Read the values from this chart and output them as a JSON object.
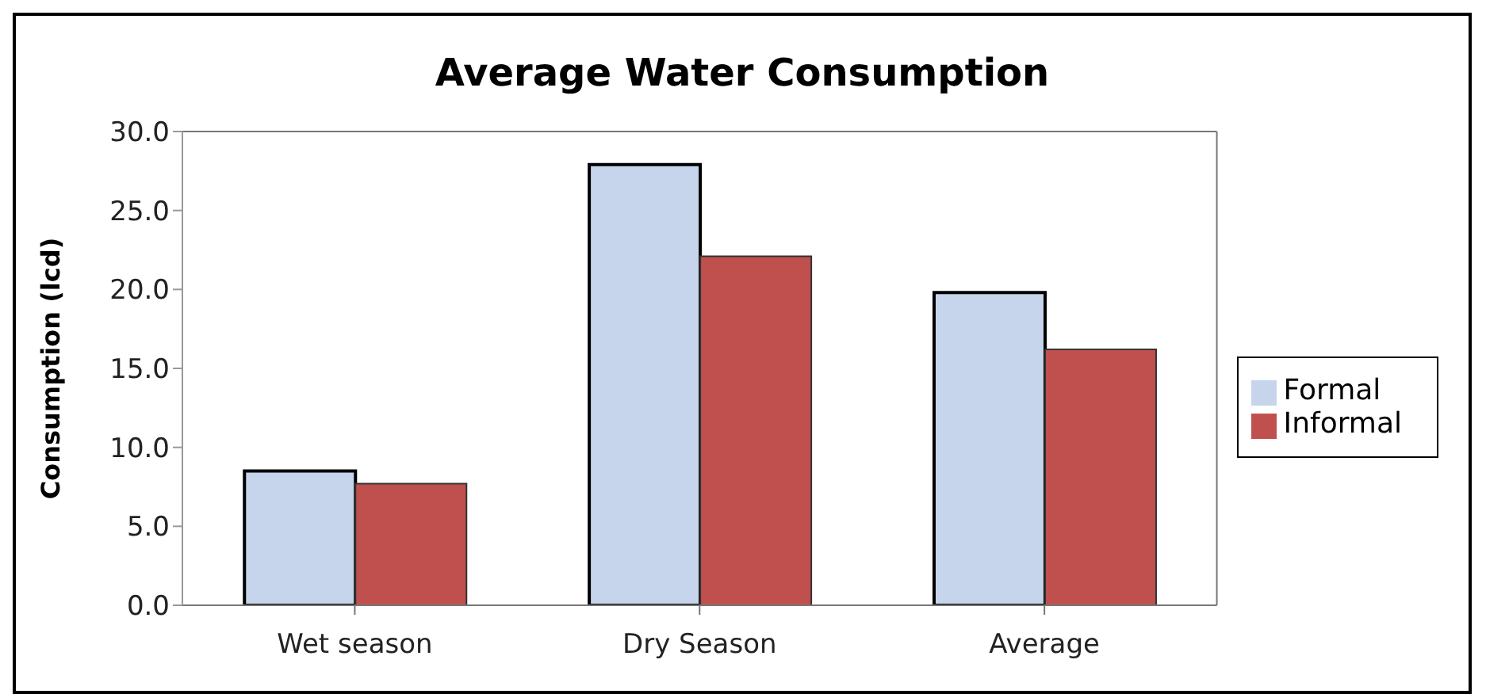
{
  "chart_data": {
    "type": "bar",
    "title": "Average Water Consumption",
    "ylabel": "Consumption (lcd)",
    "categories": [
      "Wet season",
      "Dry Season",
      "Average"
    ],
    "series": [
      {
        "name": "Formal",
        "color": "#c6d5ec",
        "values": [
          8.5,
          27.9,
          19.8
        ]
      },
      {
        "name": "Informal",
        "color": "#c0504d",
        "values": [
          7.7,
          22.1,
          16.2
        ]
      }
    ],
    "ylim": [
      0,
      30
    ],
    "yticks": [
      {
        "value": 0,
        "label": "0.0"
      },
      {
        "value": 5,
        "label": "5.0"
      },
      {
        "value": 10,
        "label": "10.0"
      },
      {
        "value": 15,
        "label": "15.0"
      },
      {
        "value": 20,
        "label": "20.0"
      },
      {
        "value": 25,
        "label": "25.0"
      },
      {
        "value": 30,
        "label": "30.0"
      }
    ],
    "grid": false,
    "legend": "right"
  }
}
